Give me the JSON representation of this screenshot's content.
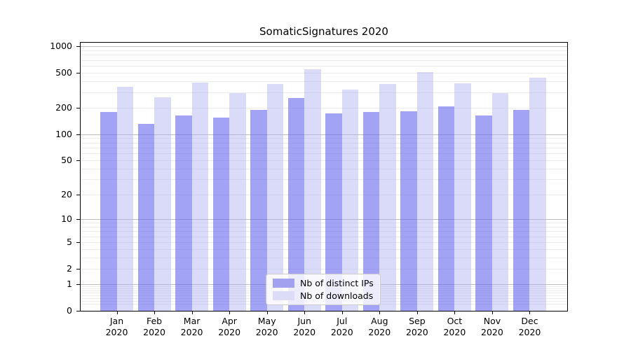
{
  "chart_data": {
    "type": "bar",
    "title": "SomaticSignatures 2020",
    "categories": [
      "Jan",
      "Feb",
      "Mar",
      "Apr",
      "May",
      "Jun",
      "Jul",
      "Aug",
      "Sep",
      "Oct",
      "Nov",
      "Dec"
    ],
    "x_year_label": "2020",
    "series": [
      {
        "name": "Nb of distinct IPs",
        "values": [
          180,
          130,
          164,
          154,
          189,
          259,
          174,
          178,
          184,
          209,
          163,
          188
        ],
        "bar_color": "rgba(102,102,238,0.6)",
        "legend_color": "#a1a1f0"
      },
      {
        "name": "Nb of downloads",
        "values": [
          350,
          265,
          385,
          296,
          375,
          545,
          323,
          371,
          508,
          382,
          297,
          437
        ],
        "bar_color": "rgba(173,173,242,0.45)",
        "legend_color": "#dcdcf9"
      }
    ],
    "yticks": [
      0,
      1,
      2,
      5,
      10,
      20,
      50,
      100,
      200,
      500,
      1000
    ],
    "ylim": [
      0,
      1100
    ],
    "yscale": "log10(1+y)",
    "grid": {
      "major_at": [
        1,
        10,
        100,
        1000
      ],
      "major_color": "#bdbdbd",
      "minor_color": "#ececec"
    },
    "legend_position": "lower center",
    "axis_color": "#000000"
  }
}
